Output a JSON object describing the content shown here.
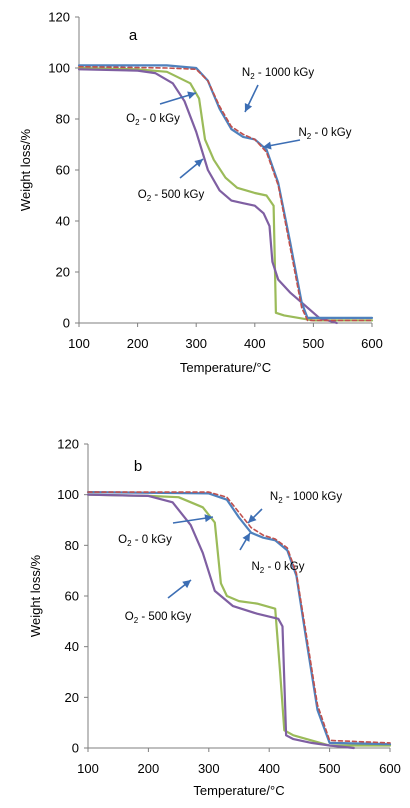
{
  "chart_data": [
    {
      "type": "line",
      "panel_label": "a",
      "xlabel": "Temperature/°C",
      "ylabel": "Weight loss/%",
      "xlim": [
        100,
        600
      ],
      "ylim": [
        0,
        120
      ],
      "x_ticks": [
        100,
        200,
        300,
        400,
        500,
        600
      ],
      "y_ticks": [
        0,
        20,
        40,
        60,
        80,
        100,
        120
      ],
      "grid": false,
      "series": [
        {
          "name": "O2 - 0 kGy",
          "color": "#9BBB59",
          "dashed": false,
          "x": [
            100,
            200,
            250,
            290,
            305,
            315,
            330,
            350,
            370,
            400,
            420,
            432,
            436,
            450,
            500,
            600
          ],
          "y": [
            100,
            99.5,
            98.5,
            94,
            88,
            72,
            64,
            57,
            53,
            51,
            50,
            46,
            4,
            3,
            1,
            1
          ]
        },
        {
          "name": "O2 - 500 kGy",
          "color": "#7F5FA2",
          "dashed": false,
          "x": [
            100,
            200,
            230,
            260,
            280,
            300,
            320,
            340,
            360,
            380,
            400,
            415,
            425,
            430,
            440,
            460,
            480,
            510,
            540
          ],
          "y": [
            99.5,
            99,
            98,
            94,
            87,
            75,
            60,
            52,
            48,
            47,
            46,
            43,
            38,
            24,
            17,
            12,
            8,
            2,
            0
          ]
        },
        {
          "name": "N2 - 1000 kGy",
          "color": "#4F81BD",
          "dashed": false,
          "x": [
            100,
            250,
            300,
            320,
            340,
            360,
            380,
            400,
            420,
            440,
            460,
            480,
            490,
            600
          ],
          "y": [
            101,
            101,
            100,
            95,
            84,
            76,
            73,
            72,
            68,
            55,
            32,
            8,
            2,
            2
          ]
        },
        {
          "name": "N2 - 0 kGy",
          "color": "#C0504D",
          "dashed": true,
          "x": [
            100,
            250,
            300,
            320,
            340,
            360,
            380,
            400,
            420,
            440,
            460,
            480,
            490,
            600
          ],
          "y": [
            100.5,
            100,
            99.5,
            95,
            85,
            77,
            74,
            72,
            67,
            54,
            30,
            6,
            1,
            1
          ]
        }
      ],
      "annotations": [
        {
          "text": "N2 - 1000 kGy",
          "x": 435,
          "y": 95
        },
        {
          "text": "O2 - 0 kGy",
          "x": 240,
          "y": 80
        },
        {
          "text": "N2 - 0 kGy",
          "x": 490,
          "y": 75
        },
        {
          "text": "O2 - 500 kGy",
          "x": 245,
          "y": 50
        }
      ]
    },
    {
      "type": "line",
      "panel_label": "b",
      "xlabel": "Temperature/°C",
      "ylabel": "Weight loss/%",
      "xlim": [
        100,
        600
      ],
      "ylim": [
        0,
        120
      ],
      "x_ticks": [
        100,
        200,
        300,
        400,
        500,
        600
      ],
      "y_ticks": [
        0,
        20,
        40,
        60,
        80,
        100,
        120
      ],
      "grid": false,
      "series": [
        {
          "name": "O2 - 0 kGy",
          "color": "#9BBB59",
          "dashed": false,
          "x": [
            100,
            200,
            250,
            290,
            310,
            320,
            330,
            350,
            380,
            410,
            418,
            425,
            440,
            470,
            500,
            600
          ],
          "y": [
            100,
            99.5,
            99,
            95,
            89,
            65,
            60,
            58,
            57,
            55,
            30,
            7,
            5,
            3,
            1,
            1
          ]
        },
        {
          "name": "O2 - 500 kGy",
          "color": "#7F5FA2",
          "dashed": false,
          "x": [
            100,
            200,
            240,
            270,
            290,
            310,
            340,
            380,
            415,
            422,
            428,
            440,
            470,
            500,
            540
          ],
          "y": [
            100,
            99.5,
            97,
            88,
            77,
            62,
            56,
            53,
            51,
            48,
            5,
            3.5,
            2,
            1,
            0
          ]
        },
        {
          "name": "N2 - 1000 kGy",
          "color": "#4F81BD",
          "dashed": false,
          "x": [
            100,
            300,
            330,
            350,
            370,
            390,
            410,
            430,
            445,
            460,
            480,
            500,
            600
          ],
          "y": [
            101,
            100.5,
            98,
            91,
            85,
            83,
            82,
            78,
            68,
            45,
            15,
            2,
            1.5
          ]
        },
        {
          "name": "N2 - 0 kGy",
          "color": "#C0504D",
          "dashed": true,
          "x": [
            100,
            300,
            330,
            350,
            370,
            390,
            410,
            430,
            445,
            460,
            480,
            500,
            600
          ],
          "y": [
            101,
            101,
            99,
            93,
            87,
            84,
            82.5,
            79,
            69,
            47,
            17,
            3,
            2
          ]
        }
      ],
      "annotations": [
        {
          "text": "N2 - 1000 kGy",
          "x": 440,
          "y": 97
        },
        {
          "text": "O2 - 0 kGy",
          "x": 190,
          "y": 84
        },
        {
          "text": "N2 - 0 kGy",
          "x": 400,
          "y": 76
        },
        {
          "text": "O2 - 500 kGy",
          "x": 170,
          "y": 59
        }
      ]
    }
  ]
}
